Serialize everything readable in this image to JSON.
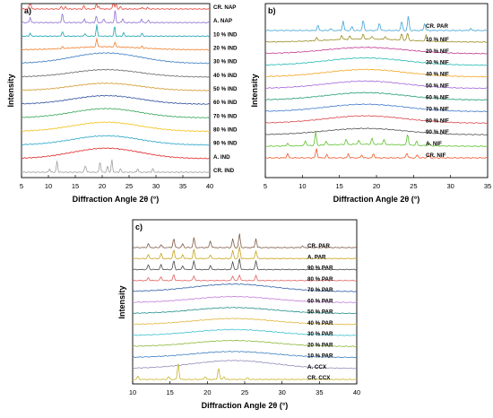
{
  "chart_data": [
    {
      "type": "line",
      "panel_label": "a)",
      "xlabel": "Diffraction Angle 2θ (°)",
      "ylabel": "Intensity",
      "xlim": [
        5,
        40
      ],
      "xticks": [
        "5",
        "10",
        "15",
        "20",
        "25",
        "30",
        "35",
        "40"
      ],
      "legend": "inline-right",
      "series": [
        {
          "name": "CR. NAP",
          "color": "#e8443a",
          "kind": "crystal",
          "peaks": [
            [
              6.6,
              1.6
            ],
            [
              12.4,
              0.22
            ],
            [
              13.2,
              0.18
            ],
            [
              16.6,
              0.28
            ],
            [
              18.9,
              0.5
            ],
            [
              19.4,
              0.22
            ],
            [
              22.1,
              0.9
            ],
            [
              22.6,
              0.45
            ],
            [
              23.4,
              0.2
            ],
            [
              27.4,
              0.15
            ],
            [
              28.4,
              0.12
            ]
          ]
        },
        {
          "name": "A. NAP",
          "color": "#8e6fd3",
          "kind": "crystal",
          "peaks": [
            [
              6.6,
              0.45
            ],
            [
              12.6,
              0.8
            ],
            [
              16.7,
              0.3
            ],
            [
              18.9,
              0.55
            ],
            [
              20.3,
              0.35
            ],
            [
              22.4,
              1.0
            ],
            [
              23.8,
              0.35
            ],
            [
              27.3,
              0.3
            ],
            [
              28.6,
              0.2
            ]
          ]
        },
        {
          "name": "10 % IND",
          "color": "#1aa3b0",
          "kind": "crystal",
          "peaks": [
            [
              6.6,
              0.25
            ],
            [
              12.6,
              0.4
            ],
            [
              16.8,
              0.25
            ],
            [
              19.0,
              0.9
            ],
            [
              22.3,
              0.8
            ],
            [
              24.0,
              0.3
            ],
            [
              27.4,
              0.25
            ]
          ]
        },
        {
          "name": "20 % IND",
          "color": "#f07f2c",
          "kind": "crystal",
          "peaks": [
            [
              12.6,
              0.15
            ],
            [
              19.0,
              0.7
            ],
            [
              22.4,
              0.4
            ],
            [
              27.4,
              0.15
            ]
          ],
          "hump": 0.25
        },
        {
          "name": "30 % IND",
          "color": "#3d7ec1",
          "kind": "halo",
          "hump": 0.85
        },
        {
          "name": "40 % IND",
          "color": "#6a6a6a",
          "kind": "halo",
          "hump": 0.6
        },
        {
          "name": "50 % IND",
          "color": "#d29a2d",
          "kind": "halo",
          "hump": 0.6
        },
        {
          "name": "60 % IND",
          "color": "#2f4f9e",
          "kind": "halo",
          "hump": 0.7
        },
        {
          "name": "70 % IND",
          "color": "#39a65c",
          "kind": "halo",
          "hump": 0.75
        },
        {
          "name": "80 % IND",
          "color": "#f2c21b",
          "kind": "halo",
          "hump": 0.75
        },
        {
          "name": "90 % IND",
          "color": "#2aa6c9",
          "kind": "halo",
          "hump": 0.75
        },
        {
          "name": "A. IND",
          "color": "#e02a2a",
          "kind": "halo",
          "hump": 0.85
        },
        {
          "name": "CR. IND",
          "color": "#a0a0a0",
          "kind": "crystal",
          "peaks": [
            [
              10.2,
              0.3
            ],
            [
              11.6,
              0.9
            ],
            [
              16.8,
              0.4
            ],
            [
              17.0,
              0.3
            ],
            [
              19.6,
              0.9
            ],
            [
              21.0,
              0.5
            ],
            [
              21.8,
              1.0
            ],
            [
              23.4,
              0.3
            ],
            [
              26.6,
              0.3
            ],
            [
              29.4,
              0.3
            ]
          ]
        }
      ]
    },
    {
      "type": "line",
      "panel_label": "b)",
      "xlabel": "Diffraction Angle 2θ (°)",
      "ylabel": "Intensity",
      "xlim": [
        5,
        35
      ],
      "xticks": [
        "5",
        "10",
        "15",
        "20",
        "25",
        "30",
        "35"
      ],
      "legend": "inline-right",
      "series": [
        {
          "name": "CR. PAR",
          "color": "#3fa3d6",
          "kind": "crystal",
          "peaks": [
            [
              12.1,
              0.5
            ],
            [
              13.8,
              0.2
            ],
            [
              15.5,
              0.9
            ],
            [
              16.7,
              0.4
            ],
            [
              18.2,
              1.0
            ],
            [
              20.4,
              0.75
            ],
            [
              23.4,
              0.9
            ],
            [
              24.3,
              1.4
            ],
            [
              26.5,
              0.7
            ],
            [
              32.7,
              0.2
            ]
          ]
        },
        {
          "name": "10 % NIF",
          "color": "#9a8a1f",
          "kind": "crystal",
          "peaks": [
            [
              11.9,
              0.3
            ],
            [
              15.3,
              0.4
            ],
            [
              16.4,
              0.3
            ],
            [
              18.2,
              0.45
            ],
            [
              19.4,
              0.3
            ],
            [
              21.2,
              0.3
            ],
            [
              23.4,
              0.6
            ],
            [
              24.2,
              0.7
            ],
            [
              26.7,
              0.6
            ]
          ],
          "hump": 0.3
        },
        {
          "name": "20 % NIF",
          "color": "#c0378f",
          "kind": "halo",
          "hump": 0.6
        },
        {
          "name": "30 % NIF",
          "color": "#1fb8b0",
          "kind": "halo",
          "hump": 0.7
        },
        {
          "name": "40 % NIF",
          "color": "#f2a51c",
          "kind": "halo",
          "hump": 0.7
        },
        {
          "name": "50 % NIF",
          "color": "#a264d8",
          "kind": "halo",
          "hump": 0.7
        },
        {
          "name": "60 % NIF",
          "color": "#1f9a6e",
          "kind": "halo",
          "hump": 0.7
        },
        {
          "name": "70 % NIF",
          "color": "#3c78c8",
          "kind": "halo",
          "hump": 0.7
        },
        {
          "name": "80 % NIF",
          "color": "#d8454a",
          "kind": "halo",
          "hump": 0.7
        },
        {
          "name": "90 % NIF",
          "color": "#505050",
          "kind": "halo",
          "hump": 0.6
        },
        {
          "name": "A. NIF",
          "color": "#5cc02a",
          "kind": "crystal",
          "peaks": [
            [
              8.0,
              0.3
            ],
            [
              10.4,
              0.5
            ],
            [
              11.8,
              1.3
            ],
            [
              13.2,
              0.4
            ],
            [
              15.9,
              0.5
            ],
            [
              17.6,
              0.4
            ],
            [
              19.4,
              0.6
            ],
            [
              21.0,
              0.5
            ],
            [
              24.2,
              1.1
            ],
            [
              25.4,
              0.4
            ],
            [
              27.1,
              0.3
            ]
          ],
          "hump": 0.2
        },
        {
          "name": "CR. NIF",
          "color": "#f0552a",
          "kind": "crystal",
          "peaks": [
            [
              8.0,
              0.4
            ],
            [
              11.9,
              0.9
            ],
            [
              13.3,
              0.3
            ],
            [
              16.2,
              0.4
            ],
            [
              18.0,
              0.3
            ],
            [
              19.6,
              0.4
            ],
            [
              24.1,
              0.5
            ],
            [
              25.5,
              0.3
            ],
            [
              27.0,
              0.3
            ]
          ]
        }
      ]
    },
    {
      "type": "line",
      "panel_label": "c)",
      "xlabel": "Diffraction Angle 2θ (°)",
      "ylabel": "Intensity",
      "xlim": [
        10,
        40
      ],
      "xticks": [
        "10",
        "15",
        "20",
        "25",
        "30",
        "35",
        "40"
      ],
      "legend": "inline-right",
      "series": [
        {
          "name": "CR. PAR",
          "color": "#7d5a45",
          "kind": "crystal",
          "peaks": [
            [
              12.1,
              0.4
            ],
            [
              13.8,
              0.3
            ],
            [
              15.5,
              0.9
            ],
            [
              16.7,
              0.4
            ],
            [
              18.2,
              1.0
            ],
            [
              20.4,
              0.7
            ],
            [
              23.4,
              0.9
            ],
            [
              24.3,
              1.4
            ],
            [
              26.5,
              0.9
            ],
            [
              32.7,
              0.15
            ]
          ]
        },
        {
          "name": "A. PAR",
          "color": "#c9a21b",
          "kind": "crystal",
          "peaks": [
            [
              12.1,
              0.4
            ],
            [
              13.8,
              0.5
            ],
            [
              15.5,
              0.9
            ],
            [
              16.7,
              0.4
            ],
            [
              18.2,
              0.9
            ],
            [
              20.4,
              0.4
            ],
            [
              23.4,
              0.8
            ],
            [
              24.3,
              1.2
            ],
            [
              26.5,
              0.8
            ]
          ]
        },
        {
          "name": "90 % PAR",
          "color": "#4a4a4a",
          "kind": "crystal",
          "peaks": [
            [
              12.1,
              0.5
            ],
            [
              13.8,
              0.5
            ],
            [
              15.5,
              0.9
            ],
            [
              16.7,
              0.4
            ],
            [
              18.2,
              0.9
            ],
            [
              20.4,
              0.4
            ],
            [
              23.4,
              0.8
            ],
            [
              24.3,
              1.1
            ],
            [
              26.5,
              0.9
            ]
          ]
        },
        {
          "name": "80 % PAR",
          "color": "#e0605f",
          "kind": "crystal",
          "peaks": [
            [
              12.1,
              0.3
            ],
            [
              13.8,
              0.4
            ],
            [
              15.5,
              0.6
            ],
            [
              18.2,
              0.5
            ],
            [
              23.4,
              0.5
            ],
            [
              24.3,
              0.6
            ],
            [
              26.5,
              0.5
            ]
          ]
        },
        {
          "name": "70 % PAR",
          "color": "#2f5fa3",
          "kind": "halo",
          "hump": 0.75
        },
        {
          "name": "60 % PAR",
          "color": "#c27bd8",
          "kind": "halo",
          "hump": 0.6
        },
        {
          "name": "50 % PAR",
          "color": "#1f8f8a",
          "kind": "halo",
          "hump": 0.6
        },
        {
          "name": "40 % PAR",
          "color": "#e0b43a",
          "kind": "halo",
          "hump": 0.6
        },
        {
          "name": "30 % PAR",
          "color": "#3ec0cf",
          "kind": "halo",
          "hump": 0.6
        },
        {
          "name": "20 % PAR",
          "color": "#8cb83a",
          "kind": "halo",
          "hump": 0.6
        },
        {
          "name": "10 % PAR",
          "color": "#3d7ec1",
          "kind": "halo",
          "hump": 0.6
        },
        {
          "name": "A. CCX",
          "color": "#8f8fb8",
          "kind": "halo",
          "hump": 0.8
        },
        {
          "name": "CR. CCX",
          "color": "#c8b42a",
          "kind": "crystal",
          "peaks": [
            [
              10.7,
              0.3
            ],
            [
              14.8,
              0.3
            ],
            [
              16.1,
              1.6
            ],
            [
              19.7,
              0.3
            ],
            [
              21.5,
              1.2
            ],
            [
              22.2,
              0.3
            ],
            [
              25.4,
              0.2
            ]
          ]
        }
      ]
    }
  ]
}
